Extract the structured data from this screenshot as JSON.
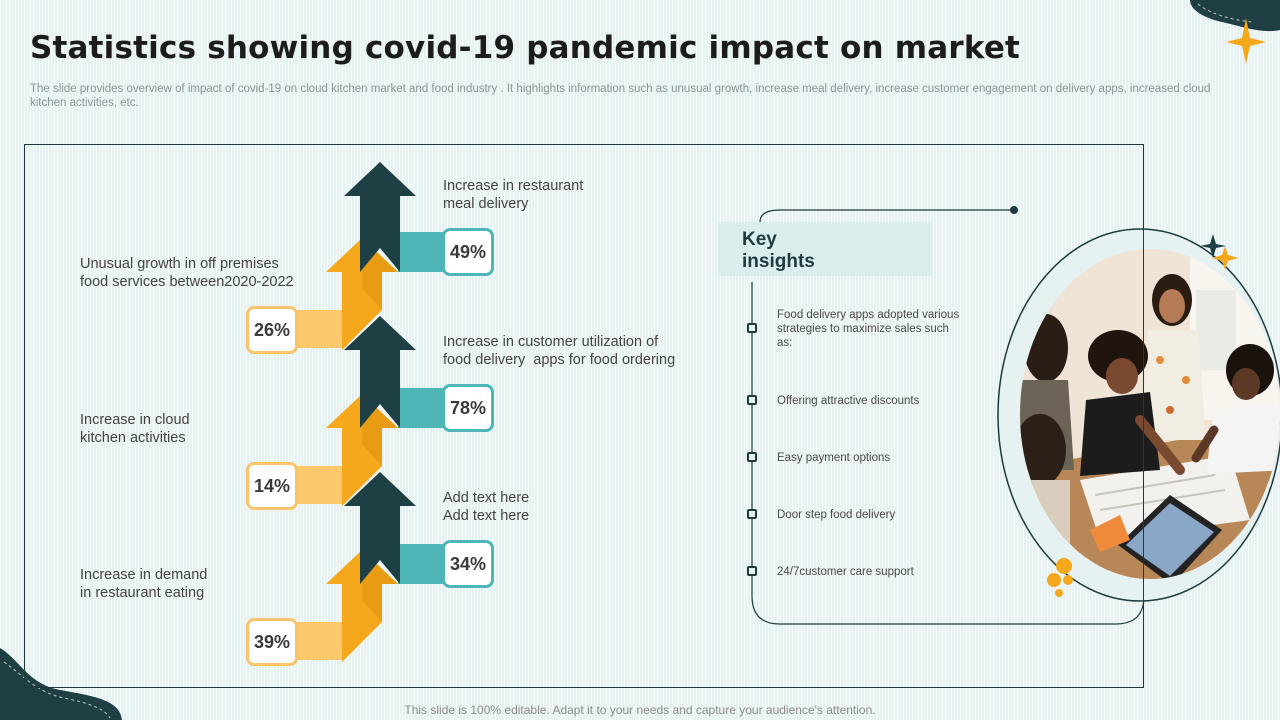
{
  "page": {
    "title": "Statistics showing covid-19 pandemic impact on market",
    "subtitle": "The slide provides overview of impact of covid-19 on cloud kitchen market and food industry . It highlights information such as unusual growth, increase meal delivery, increase customer engagement on delivery apps, increased cloud kitchen activities, etc.",
    "footer": "This slide is 100% editable. Adapt it to your needs and capture your audience's attention."
  },
  "stats": {
    "left": [
      {
        "label": "Unusual growth in off premises\nfood services between2020-2022",
        "value": "26%"
      },
      {
        "label": "Increase in cloud\nkitchen activities",
        "value": "14%"
      },
      {
        "label": "Increase in demand\nin restaurant eating",
        "value": "39%"
      }
    ],
    "right": [
      {
        "label": "Increase in restaurant\nmeal delivery",
        "value": "49%"
      },
      {
        "label": "Increase in customer utilization of\nfood delivery  apps for food ordering",
        "value": "78%"
      },
      {
        "label": "Add text here\nAdd text here",
        "value": "34%"
      }
    ]
  },
  "insights": {
    "title": "Key\ninsights",
    "items": [
      "Food delivery apps adopted various strategies to maximize sales such as:",
      "Offering attractive discounts",
      "Easy payment options",
      "Door step food delivery",
      "24/7customer care support"
    ]
  },
  "colors": {
    "dark_teal": "#1e3f44",
    "teal": "#4fb6b8",
    "orange": "#f6a81c",
    "light_orange": "#fcc86c"
  },
  "icons": {
    "corner_decoration": "blob-shape",
    "sparkle": "four-point-star",
    "photo": "people-working-at-table-photo"
  }
}
